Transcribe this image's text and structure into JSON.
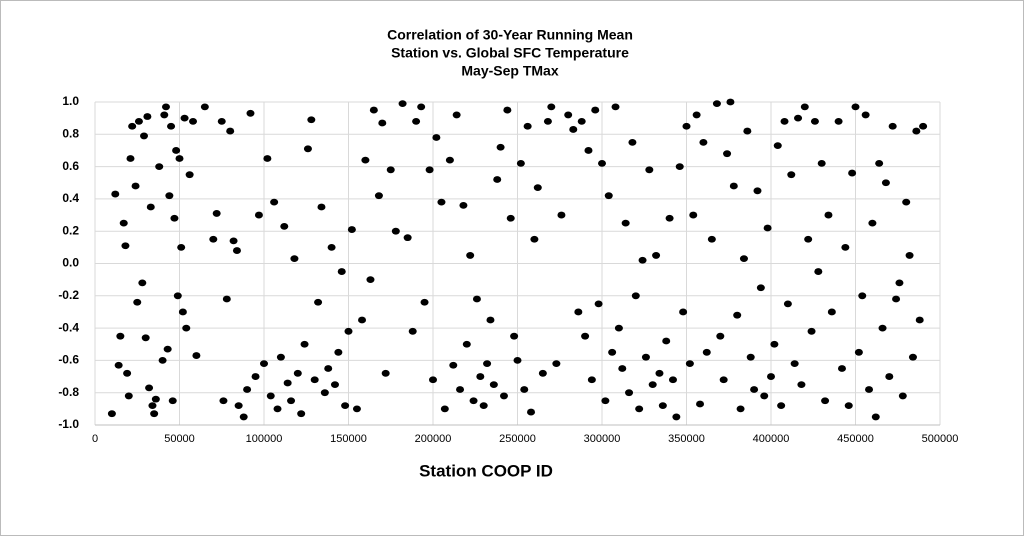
{
  "chart_data": {
    "type": "scatter",
    "title": [
      "Correlation of 30-Year Running Mean",
      "Station vs. Global SFC Temperature",
      "May-Sep TMax"
    ],
    "xlabel": "Station COOP ID",
    "color": "#000000",
    "grid": true,
    "xlim": [
      0,
      500000
    ],
    "xticks": [
      0,
      50000,
      100000,
      150000,
      200000,
      250000,
      300000,
      350000,
      400000,
      450000,
      500000
    ],
    "ylim": [
      -1,
      1
    ],
    "yticks": [
      {
        "value": -1,
        "label": "-1.0"
      },
      -0.8,
      -0.6,
      -0.4,
      -0.2,
      {
        "value": 0,
        "label": "0.0"
      },
      0.2,
      0.4,
      0.6,
      0.8,
      {
        "value": 1,
        "label": "1.0"
      }
    ],
    "x": [
      10000,
      12000,
      14000,
      15000,
      17000,
      18000,
      19000,
      20000,
      21000,
      22000,
      24000,
      25000,
      26000,
      28000,
      29000,
      30000,
      31000,
      32000,
      33000,
      34000,
      35000,
      36000,
      38000,
      40000,
      41000,
      42000,
      43000,
      44000,
      45000,
      46000,
      47000,
      48000,
      49000,
      50000,
      51000,
      52000,
      53000,
      54000,
      56000,
      58000,
      60000,
      65000,
      70000,
      72000,
      75000,
      76000,
      78000,
      80000,
      82000,
      84000,
      85000,
      88000,
      90000,
      92000,
      95000,
      97000,
      100000,
      102000,
      104000,
      106000,
      108000,
      110000,
      112000,
      114000,
      116000,
      118000,
      120000,
      122000,
      124000,
      126000,
      128000,
      130000,
      132000,
      134000,
      136000,
      138000,
      140000,
      142000,
      144000,
      146000,
      148000,
      150000,
      152000,
      155000,
      158000,
      160000,
      163000,
      165000,
      168000,
      170000,
      172000,
      175000,
      178000,
      182000,
      185000,
      188000,
      190000,
      193000,
      195000,
      198000,
      200000,
      202000,
      205000,
      207000,
      210000,
      212000,
      214000,
      216000,
      218000,
      220000,
      222000,
      224000,
      226000,
      228000,
      230000,
      232000,
      234000,
      236000,
      238000,
      240000,
      242000,
      244000,
      246000,
      248000,
      250000,
      252000,
      254000,
      256000,
      258000,
      260000,
      262000,
      265000,
      268000,
      270000,
      273000,
      276000,
      280000,
      283000,
      286000,
      288000,
      290000,
      292000,
      294000,
      296000,
      298000,
      300000,
      302000,
      304000,
      306000,
      308000,
      310000,
      312000,
      314000,
      316000,
      318000,
      320000,
      322000,
      324000,
      326000,
      328000,
      330000,
      332000,
      334000,
      336000,
      338000,
      340000,
      342000,
      344000,
      346000,
      348000,
      350000,
      352000,
      354000,
      356000,
      358000,
      360000,
      362000,
      365000,
      368000,
      370000,
      372000,
      374000,
      376000,
      378000,
      380000,
      382000,
      384000,
      386000,
      388000,
      390000,
      392000,
      394000,
      396000,
      398000,
      400000,
      402000,
      404000,
      406000,
      408000,
      410000,
      412000,
      414000,
      416000,
      418000,
      420000,
      422000,
      424000,
      426000,
      428000,
      430000,
      432000,
      434000,
      436000,
      440000,
      442000,
      444000,
      446000,
      448000,
      450000,
      452000,
      454000,
      456000,
      458000,
      460000,
      462000,
      464000,
      466000,
      468000,
      470000,
      472000,
      474000,
      476000,
      478000,
      480000,
      482000,
      484000,
      486000,
      488000,
      490000
    ],
    "y": [
      -0.93,
      0.43,
      -0.63,
      -0.45,
      0.25,
      0.11,
      -0.68,
      -0.82,
      0.65,
      0.85,
      0.48,
      -0.24,
      0.88,
      -0.12,
      0.79,
      -0.46,
      0.91,
      -0.77,
      0.35,
      -0.88,
      -0.93,
      -0.84,
      0.6,
      -0.6,
      0.92,
      0.97,
      -0.53,
      0.42,
      0.85,
      -0.85,
      0.28,
      0.7,
      -0.2,
      0.65,
      0.1,
      -0.3,
      0.9,
      -0.4,
      0.55,
      0.88,
      -0.57,
      0.97,
      0.15,
      0.31,
      0.88,
      -0.85,
      -0.22,
      0.82,
      0.14,
      0.08,
      -0.88,
      -0.95,
      -0.78,
      0.93,
      -0.7,
      0.3,
      -0.62,
      0.65,
      -0.82,
      0.38,
      -0.9,
      -0.58,
      0.23,
      -0.74,
      -0.85,
      0.03,
      -0.68,
      -0.93,
      -0.5,
      0.71,
      0.89,
      -0.72,
      -0.24,
      0.35,
      -0.8,
      -0.65,
      0.1,
      -0.75,
      -0.55,
      -0.05,
      -0.88,
      -0.42,
      0.21,
      -0.9,
      -0.35,
      0.64,
      -0.1,
      0.95,
      0.42,
      0.87,
      -0.68,
      0.58,
      0.2,
      0.99,
      0.16,
      -0.42,
      0.88,
      0.97,
      -0.24,
      0.58,
      -0.72,
      0.78,
      0.38,
      -0.9,
      0.64,
      -0.63,
      0.92,
      -0.78,
      0.36,
      -0.5,
      0.05,
      -0.85,
      -0.22,
      -0.7,
      -0.88,
      -0.62,
      -0.35,
      -0.75,
      0.52,
      0.72,
      -0.82,
      0.95,
      0.28,
      -0.45,
      -0.6,
      0.62,
      -0.78,
      0.85,
      -0.92,
      0.15,
      0.47,
      -0.68,
      0.88,
      0.97,
      -0.62,
      0.3,
      0.92,
      0.83,
      -0.3,
      0.88,
      -0.45,
      0.7,
      -0.72,
      0.95,
      -0.25,
      0.62,
      -0.85,
      0.42,
      -0.55,
      0.97,
      -0.4,
      -0.65,
      0.25,
      -0.8,
      0.75,
      -0.2,
      -0.9,
      0.02,
      -0.58,
      0.58,
      -0.75,
      0.05,
      -0.68,
      -0.88,
      -0.48,
      0.28,
      -0.72,
      -0.95,
      0.6,
      -0.3,
      0.85,
      -0.62,
      0.3,
      0.92,
      -0.87,
      0.75,
      -0.55,
      0.15,
      0.99,
      -0.45,
      -0.72,
      0.68,
      1.0,
      0.48,
      -0.32,
      -0.9,
      0.03,
      0.82,
      -0.58,
      -0.78,
      0.45,
      -0.15,
      -0.82,
      0.22,
      -0.7,
      -0.5,
      0.73,
      -0.88,
      0.88,
      -0.25,
      0.55,
      -0.62,
      0.9,
      -0.75,
      0.97,
      0.15,
      -0.42,
      0.88,
      -0.05,
      0.62,
      -0.85,
      0.3,
      -0.3,
      0.88,
      -0.65,
      0.1,
      -0.88,
      0.56,
      0.97,
      -0.55,
      -0.2,
      0.92,
      -0.78,
      0.25,
      -0.95,
      0.62,
      -0.4,
      0.5,
      -0.7,
      0.85,
      -0.22,
      -0.12,
      -0.82,
      0.38,
      0.05,
      -0.58,
      0.82,
      -0.35,
      0.85
    ]
  }
}
